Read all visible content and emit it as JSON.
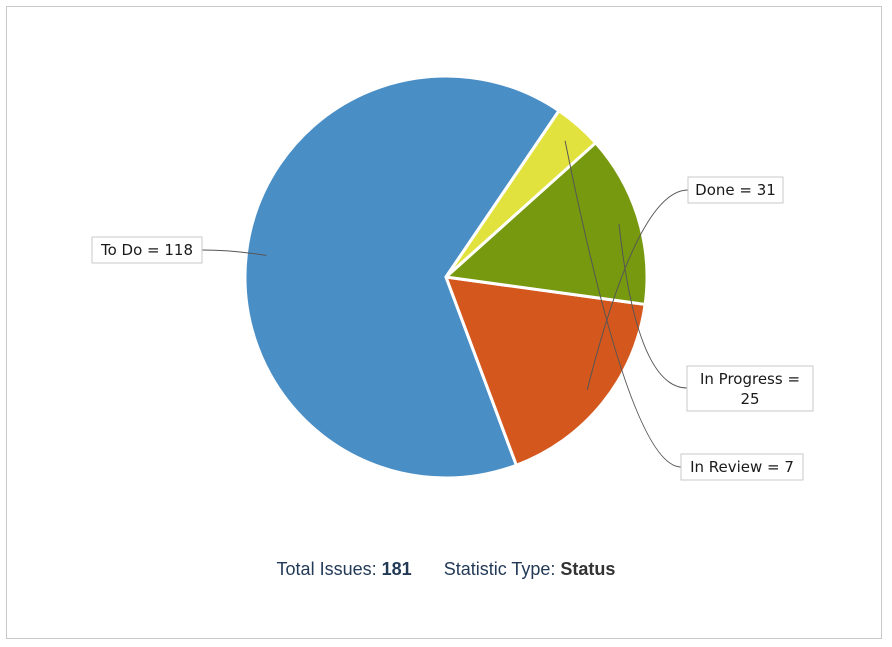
{
  "chart_data": {
    "type": "pie",
    "slices": [
      {
        "label": "To Do = 118",
        "name": "To Do",
        "value": 118,
        "color": "#4a8ec6"
      },
      {
        "label": "Done = 31",
        "name": "Done",
        "value": 31,
        "color": "#d4581e"
      },
      {
        "label": [
          "In Progress =",
          "25"
        ],
        "name": "In Progress",
        "value": 25,
        "color": "#77990f"
      },
      {
        "label": "In Review = 7",
        "name": "In Review",
        "value": 7,
        "color": "#e2e23e"
      }
    ]
  },
  "footer": {
    "total_label": "Total Issues:",
    "total_value": "181",
    "stat_label": "Statistic Type:",
    "stat_value": "Status"
  }
}
